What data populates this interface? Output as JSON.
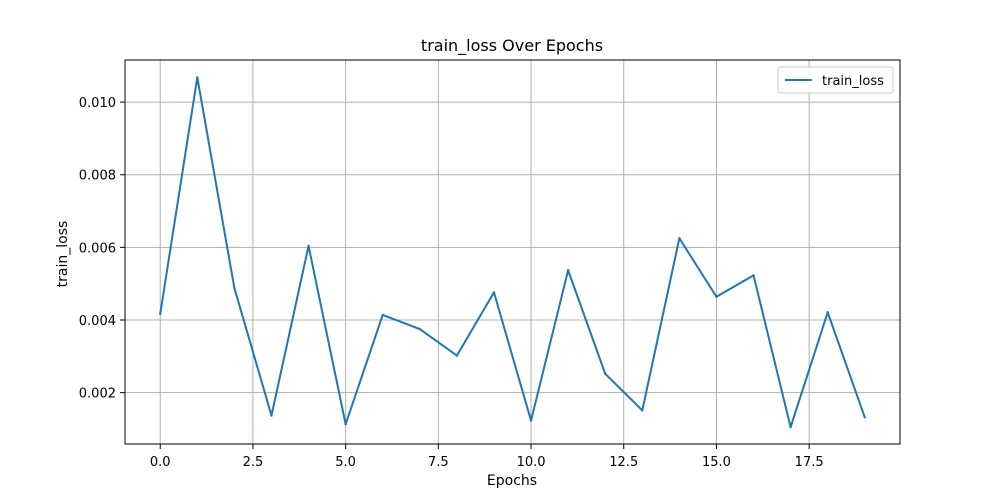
{
  "chart_data": {
    "type": "line",
    "title": "train_loss Over Epochs",
    "xlabel": "Epochs",
    "ylabel": "train_loss",
    "xlim": [
      -0.95,
      19.95
    ],
    "ylim": [
      0.000585,
      0.01116
    ],
    "xticks": [
      0.0,
      2.5,
      5.0,
      7.5,
      10.0,
      12.5,
      15.0,
      17.5
    ],
    "xtick_labels": [
      "0.0",
      "2.5",
      "5.0",
      "7.5",
      "10.0",
      "12.5",
      "15.0",
      "17.5"
    ],
    "yticks": [
      0.002,
      0.004,
      0.006,
      0.008,
      0.01
    ],
    "ytick_labels": [
      "0.002",
      "0.004",
      "0.006",
      "0.008",
      "0.010"
    ],
    "grid": true,
    "legend_position": "top-right",
    "series": [
      {
        "name": "train_loss",
        "color": "#1f77b4",
        "x": [
          0,
          1,
          2,
          3,
          4,
          5,
          6,
          7,
          8,
          9,
          10,
          11,
          12,
          13,
          14,
          15,
          16,
          17,
          18,
          19
        ],
        "values": [
          0.00417,
          0.01068,
          0.00488,
          0.00137,
          0.00604,
          0.00113,
          0.00414,
          0.00375,
          0.00302,
          0.00476,
          0.00123,
          0.00537,
          0.00252,
          0.00151,
          0.00625,
          0.00464,
          0.00523,
          0.00105,
          0.00421,
          0.00132
        ]
      }
    ]
  }
}
